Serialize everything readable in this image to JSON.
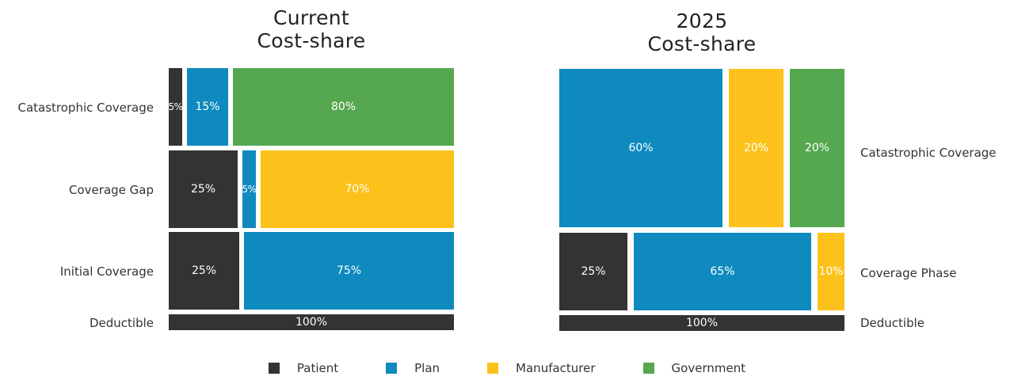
{
  "colors": {
    "Patient": "#333333",
    "Plan": "#0e8abf",
    "Manufacturer": "#fcc21b",
    "Government": "#55a84f"
  },
  "legend": [
    "Patient",
    "Plan",
    "Manufacturer",
    "Government"
  ],
  "chart_data": [
    {
      "type": "mosaic",
      "title": [
        "Current",
        "Cost-share"
      ],
      "rows": [
        {
          "label": "Catastrophic Coverage",
          "segments": [
            {
              "category": "Patient",
              "value": 5,
              "label": "5%"
            },
            {
              "category": "Plan",
              "value": 15,
              "label": "15%"
            },
            {
              "category": "Government",
              "value": 80,
              "label": "80%"
            }
          ]
        },
        {
          "label": "Coverage Gap",
          "segments": [
            {
              "category": "Patient",
              "value": 25,
              "label": "25%"
            },
            {
              "category": "Plan",
              "value": 5,
              "label": "5%"
            },
            {
              "category": "Manufacturer",
              "value": 70,
              "label": "70%"
            }
          ]
        },
        {
          "label": "Initial Coverage",
          "segments": [
            {
              "category": "Patient",
              "value": 25,
              "label": "25%"
            },
            {
              "category": "Plan",
              "value": 75,
              "label": "75%"
            }
          ]
        },
        {
          "label": "Deductible",
          "segments": [
            {
              "category": "Patient",
              "value": 100,
              "label": "100%"
            }
          ]
        }
      ]
    },
    {
      "type": "mosaic",
      "title": [
        "2025",
        "Cost-share"
      ],
      "rows": [
        {
          "label": "Catastrophic Coverage",
          "segments": [
            {
              "category": "Plan",
              "value": 60,
              "label": "60%"
            },
            {
              "category": "Manufacturer",
              "value": 20,
              "label": "20%"
            },
            {
              "category": "Government",
              "value": 20,
              "label": "20%"
            }
          ]
        },
        {
          "label": "Coverage Phase",
          "segments": [
            {
              "category": "Patient",
              "value": 25,
              "label": "25%"
            },
            {
              "category": "Plan",
              "value": 65,
              "label": "65%"
            },
            {
              "category": "Manufacturer",
              "value": 10,
              "label": "10%"
            }
          ]
        },
        {
          "label": "Deductible",
          "segments": [
            {
              "category": "Patient",
              "value": 100,
              "label": "100%"
            }
          ]
        }
      ]
    }
  ]
}
